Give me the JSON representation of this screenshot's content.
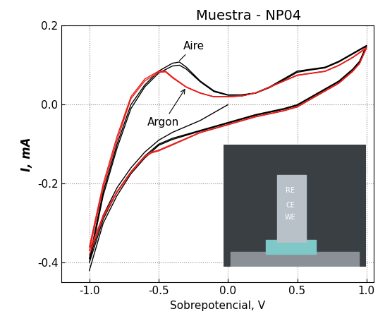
{
  "chart_data": {
    "type": "line",
    "title": "Muestra - NP04",
    "x_label": "Sobrepotencial, V",
    "y_label": "I, mA",
    "xlim": [
      -1.2,
      1.05
    ],
    "ylim": [
      -0.45,
      0.2
    ],
    "xticks": [
      -1.0,
      -0.5,
      0.0,
      0.5,
      1.0
    ],
    "yticks": [
      -0.4,
      -0.2,
      0.0,
      0.2
    ],
    "grid": true,
    "inset_labels": [
      "RE",
      "CE",
      "WE"
    ],
    "series": [
      {
        "name": "Aire",
        "color": "#000000",
        "line_style": "solid",
        "x": [
          0.0,
          -0.1,
          -0.2,
          -0.3,
          -0.4,
          -0.5,
          -0.6,
          -0.7,
          -0.8,
          -0.9,
          -1.0,
          -0.9,
          -0.8,
          -0.7,
          -0.6,
          -0.5,
          -0.4,
          -0.35,
          -0.3,
          -0.2,
          -0.1,
          0.0,
          0.1,
          0.2,
          0.3,
          0.4,
          0.5,
          0.6,
          0.7,
          0.8,
          0.9,
          1.0,
          0.95,
          0.9,
          0.8,
          0.7,
          0.6,
          0.5,
          0.4,
          0.2,
          0.0,
          -0.2,
          -0.4,
          -0.5,
          -0.6,
          -0.7,
          -0.8,
          -0.9,
          -1.0,
          -0.9,
          -0.8,
          -0.7,
          -0.6,
          -0.5,
          -0.4,
          -0.35,
          -0.3,
          -0.2,
          -0.1,
          0.0,
          0.1,
          0.2,
          0.3,
          0.4,
          0.5,
          0.6,
          0.7,
          0.8,
          0.9,
          1.0,
          0.95,
          0.9,
          0.8,
          0.7,
          0.6,
          0.5,
          0.4,
          0.2,
          0.0,
          -0.2,
          -0.4,
          -0.5,
          -0.6,
          -0.7,
          -0.8,
          -0.9,
          -1.0
        ],
        "values": [
          0.0,
          -0.02,
          -0.04,
          -0.055,
          -0.07,
          -0.09,
          -0.12,
          -0.16,
          -0.21,
          -0.28,
          -0.39,
          -0.22,
          -0.1,
          0.0,
          0.05,
          0.085,
          0.105,
          0.108,
          0.095,
          0.06,
          0.035,
          0.025,
          0.025,
          0.03,
          0.045,
          0.065,
          0.085,
          0.09,
          0.095,
          0.11,
          0.13,
          0.15,
          0.11,
          0.09,
          0.06,
          0.04,
          0.02,
          0.0,
          -0.01,
          -0.025,
          -0.045,
          -0.065,
          -0.085,
          -0.1,
          -0.13,
          -0.17,
          -0.22,
          -0.29,
          -0.4,
          -0.23,
          -0.11,
          -0.01,
          0.045,
          0.08,
          0.098,
          0.1,
          0.09,
          0.058,
          0.033,
          0.024,
          0.024,
          0.029,
          0.043,
          0.062,
          0.082,
          0.088,
          0.093,
          0.108,
          0.128,
          0.148,
          0.108,
          0.088,
          0.058,
          0.038,
          0.018,
          -0.002,
          -0.012,
          -0.027,
          -0.047,
          -0.067,
          -0.088,
          -0.103,
          -0.135,
          -0.175,
          -0.23,
          -0.3,
          -0.42
        ]
      },
      {
        "name": "Argon",
        "color": "#e8201c",
        "line_style": "solid",
        "x": [
          -1.0,
          -0.9,
          -0.8,
          -0.7,
          -0.6,
          -0.5,
          -0.45,
          -0.4,
          -0.3,
          -0.2,
          -0.1,
          0.0,
          0.1,
          0.2,
          0.3,
          0.4,
          0.5,
          0.6,
          0.7,
          0.8,
          0.9,
          1.0,
          0.95,
          0.9,
          0.8,
          0.7,
          0.6,
          0.5,
          0.4,
          0.2,
          0.0,
          -0.2,
          -0.4,
          -0.5,
          -0.55,
          -0.6,
          -0.7,
          -0.8,
          -0.9,
          -1.0,
          -0.9,
          -0.8,
          -0.7,
          -0.6,
          -0.5,
          -0.45,
          -0.4,
          -0.3,
          -0.2,
          -0.1,
          0.0,
          0.1,
          0.2,
          0.3,
          0.4,
          0.5,
          0.6,
          0.7,
          0.8,
          0.9,
          1.0,
          0.95,
          0.9,
          0.8,
          0.7,
          0.6,
          0.5,
          0.4,
          0.2,
          0.0,
          -0.2,
          -0.4,
          -0.5,
          -0.55,
          -0.6,
          -0.7,
          -0.8,
          -0.9,
          -1.0
        ],
        "values": [
          -0.36,
          -0.2,
          -0.08,
          0.02,
          0.065,
          0.085,
          0.085,
          0.07,
          0.045,
          0.03,
          0.02,
          0.02,
          0.022,
          0.03,
          0.045,
          0.06,
          0.075,
          0.08,
          0.085,
          0.1,
          0.12,
          0.145,
          0.105,
          0.085,
          0.055,
          0.035,
          0.015,
          -0.005,
          -0.015,
          -0.03,
          -0.05,
          -0.07,
          -0.1,
          -0.115,
          -0.12,
          -0.13,
          -0.17,
          -0.22,
          -0.28,
          -0.37,
          -0.21,
          -0.09,
          0.015,
          0.06,
          0.082,
          0.083,
          0.068,
          0.044,
          0.029,
          0.02,
          0.02,
          0.022,
          0.03,
          0.044,
          0.059,
          0.074,
          0.079,
          0.084,
          0.099,
          0.119,
          0.143,
          0.104,
          0.084,
          0.054,
          0.034,
          0.014,
          -0.006,
          -0.016,
          -0.031,
          -0.051,
          -0.071,
          -0.102,
          -0.117,
          -0.122,
          -0.132,
          -0.172,
          -0.222,
          -0.285,
          -0.38
        ]
      }
    ]
  }
}
